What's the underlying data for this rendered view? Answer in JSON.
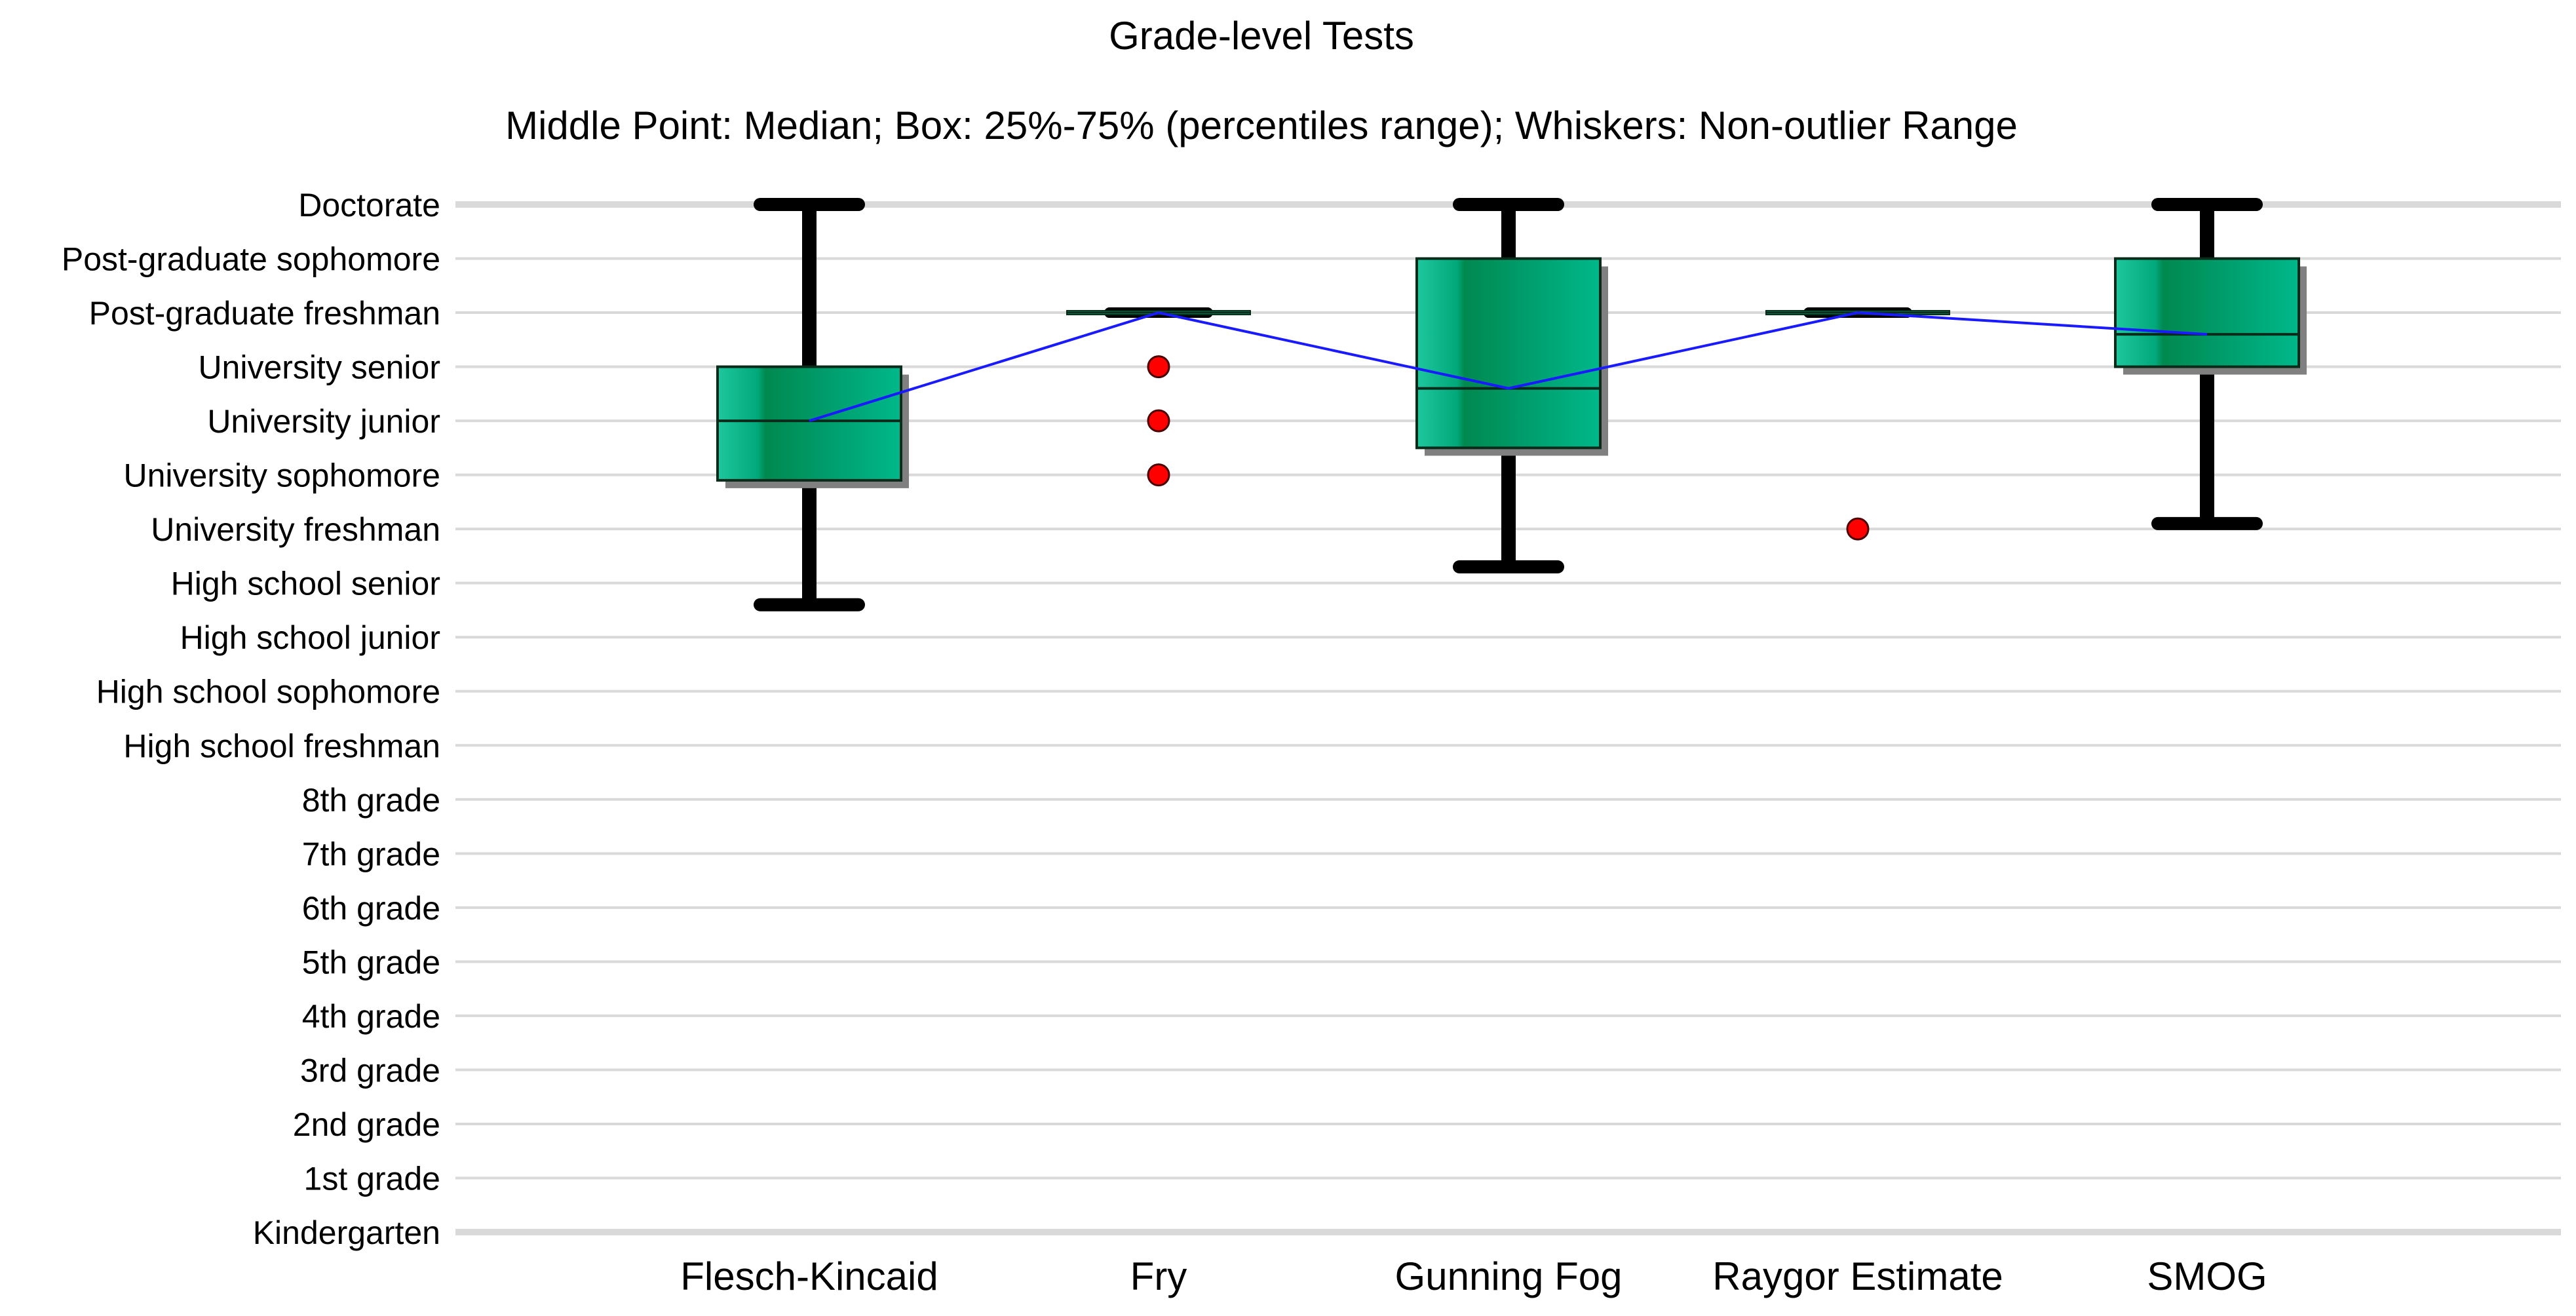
{
  "chart_data": {
    "type": "box",
    "title": "Grade-level Tests",
    "subtitle": "Middle Point: Median; Box: 25%-75% (percentiles range); Whiskers: Non-outlier Range",
    "xlabel": "",
    "ylabel": "",
    "y_categories": [
      "Kindergarten",
      "1st grade",
      "2nd grade",
      "3rd grade",
      "4th grade",
      "5th grade",
      "6th grade",
      "7th grade",
      "8th grade",
      "High school freshman",
      "High school sophomore",
      "High school junior",
      "High school senior",
      "University freshman",
      "University sophomore",
      "University junior",
      "University senior",
      "Post-graduate freshman",
      "Post-graduate sophomore",
      "Doctorate"
    ],
    "ylim": [
      0,
      19
    ],
    "grid": true,
    "median_connector": true,
    "series": [
      {
        "name": "Flesch-Kincaid",
        "whisker_low": 11.6,
        "q1": 13.9,
        "median": 15.0,
        "q3": 16.0,
        "whisker_high": 19,
        "outliers": []
      },
      {
        "name": "Fry",
        "whisker_low": 17.0,
        "q1": 17.0,
        "median": 17.0,
        "q3": 17.0,
        "whisker_high": 17.0,
        "outliers": [
          16,
          15,
          14
        ]
      },
      {
        "name": "Gunning Fog",
        "whisker_low": 12.3,
        "q1": 14.5,
        "median": 15.6,
        "q3": 18.0,
        "whisker_high": 19,
        "outliers": []
      },
      {
        "name": "Raygor Estimate",
        "whisker_low": 17.0,
        "q1": 17.0,
        "median": 17.0,
        "q3": 17.0,
        "whisker_high": 17.0,
        "outliers": [
          13
        ]
      },
      {
        "name": "SMOG",
        "whisker_low": 13.1,
        "q1": 16.0,
        "median": 16.6,
        "q3": 18.0,
        "whisker_high": 19,
        "outliers": []
      }
    ],
    "colors": {
      "box_fill": "#00a87a",
      "box_dark": "#00894f",
      "box_light": "#22c8a0",
      "box_stroke": "#0a2a1a",
      "shadow": "#808080",
      "whisker": "#000000",
      "median_line": "#1a1aff",
      "outlier": "#ff0000",
      "grid": "#d9d9d9"
    }
  }
}
